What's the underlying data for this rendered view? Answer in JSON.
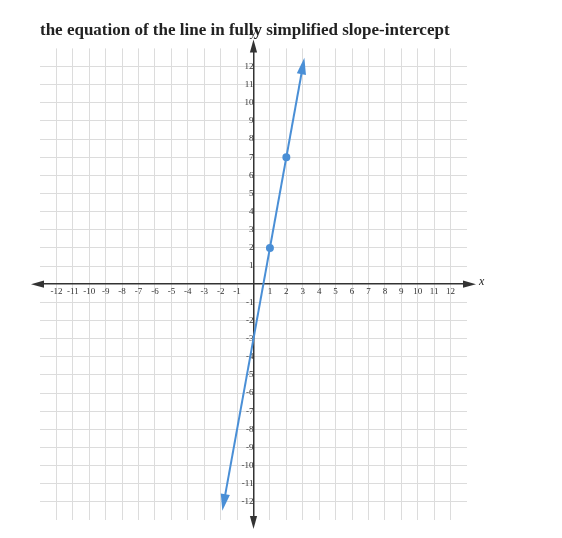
{
  "chart_data": {
    "type": "line",
    "title": "the equation of the line in fully simplified slope-intercept",
    "x_label": "x",
    "y_label": "y",
    "series": [
      {
        "color": "#4a8fd6",
        "x": [
          -1.8,
          3
        ],
        "values": [
          -12,
          12
        ],
        "marker": "arrow",
        "line_style": "solid"
      },
      {
        "color": "#4a8fd6",
        "x": [
          1,
          2
        ],
        "values": [
          2,
          7
        ],
        "marker": "circle",
        "line_style": "none"
      }
    ],
    "xlim": [
      -13,
      13
    ],
    "xticks": [
      -12,
      -11,
      -10,
      -9,
      -8,
      -7,
      -6,
      -5,
      -4,
      -3,
      -2,
      -1,
      1,
      2,
      3,
      4,
      5,
      6,
      7,
      8,
      9,
      10,
      11,
      12
    ],
    "ylim": [
      -13,
      13
    ],
    "yticks": [
      -12,
      -11,
      -10,
      -9,
      -8,
      -7,
      -6,
      -5,
      -4,
      -3,
      -2,
      -1,
      1,
      2,
      3,
      4,
      5,
      6,
      7,
      8,
      9,
      10,
      11,
      12
    ],
    "grid": true
  }
}
